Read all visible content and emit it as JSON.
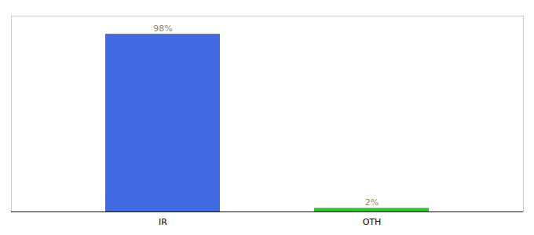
{
  "chart_data": {
    "type": "bar",
    "categories": [
      "IR",
      "OTH"
    ],
    "values": [
      98,
      2
    ],
    "value_labels": [
      "98%",
      "2%"
    ],
    "colors": [
      "#4169e1",
      "#22cc22"
    ],
    "data_labels": true,
    "ylim": [
      0,
      108
    ],
    "yticks": [],
    "tick_labels": "x",
    "grid": false
  }
}
